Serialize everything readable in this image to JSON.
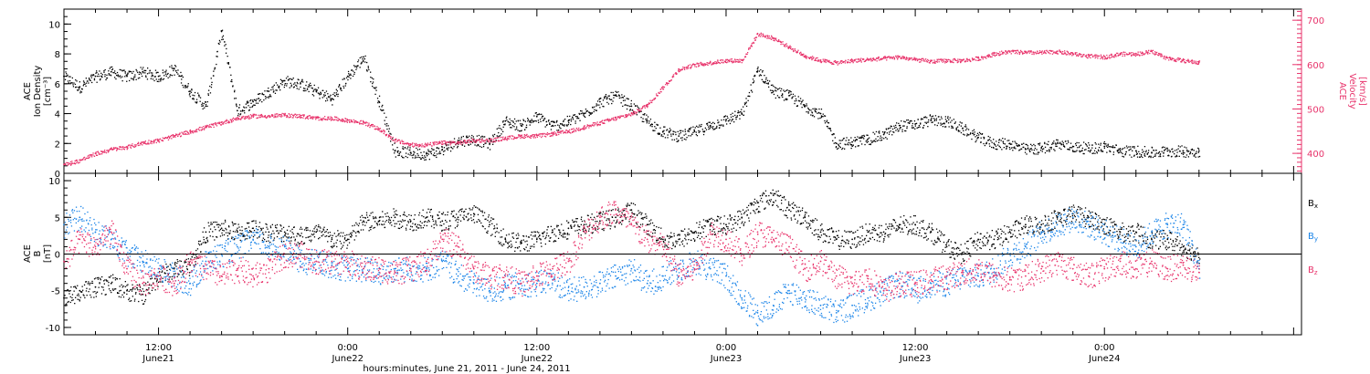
{
  "colors": {
    "black": "#000000",
    "pink": "#e8336b",
    "blue": "#1a84e8"
  },
  "xaxis": {
    "xlabel": "hours:minutes, June 21, 2011 - June 24, 2011",
    "ticks": [
      {
        "time_label": "12:00",
        "date_label": "June21",
        "hour": 12
      },
      {
        "time_label": "0:00",
        "date_label": "June22",
        "hour": 24
      },
      {
        "time_label": "12:00",
        "date_label": "June22",
        "hour": 36
      },
      {
        "time_label": "0:00",
        "date_label": "June23",
        "hour": 48
      },
      {
        "time_label": "12:00",
        "date_label": "June23",
        "hour": 60
      },
      {
        "time_label": "0:00",
        "date_label": "June24",
        "hour": 72
      }
    ]
  },
  "chart_data": [
    {
      "type": "scatter",
      "panel": "top",
      "x_units": "hours from 2011-06-21 00:00",
      "xlim": [
        6,
        84.5
      ],
      "left_axis": {
        "label_lines": [
          "ACE",
          "Ion Density",
          "[cm⁻³]"
        ],
        "ylim": [
          0,
          11
        ],
        "ticks": [
          "0",
          "2",
          "4",
          "6",
          "8",
          "10"
        ],
        "tick_values": [
          0,
          2,
          4,
          6,
          8,
          10
        ]
      },
      "right_axis": {
        "label_lines": [
          "ACE",
          "Velocity",
          "[km/s]"
        ],
        "ylim": [
          355,
          725
        ],
        "ticks": [
          "400",
          "500",
          "600",
          "700"
        ],
        "tick_values": [
          400,
          500,
          600,
          700
        ]
      },
      "series": [
        {
          "name": "Ion Density",
          "color": "#000000",
          "axis": "left",
          "x": [
            6,
            7,
            8,
            9,
            10,
            11,
            12,
            13,
            14,
            15,
            16,
            17,
            18,
            19,
            20,
            21,
            22,
            23,
            24,
            25,
            26,
            27,
            28,
            29,
            30,
            31,
            32,
            33,
            34,
            35,
            36,
            37,
            38,
            39,
            40,
            41,
            42,
            43,
            44,
            45,
            46,
            47,
            48,
            49,
            50,
            51,
            52,
            53,
            54,
            55,
            56,
            57,
            58,
            59,
            60,
            61,
            62,
            63,
            64,
            65,
            66,
            67,
            68,
            69,
            70,
            71,
            72,
            73,
            74,
            75,
            76,
            77,
            78
          ],
          "y": [
            6.5,
            5.8,
            6.5,
            6.8,
            6.5,
            6.8,
            6.5,
            7.0,
            5.5,
            4.5,
            9.5,
            4.2,
            4.8,
            5.5,
            6.2,
            6.0,
            5.5,
            5.0,
            6.5,
            7.8,
            4.8,
            1.5,
            1.4,
            1.3,
            1.6,
            2.2,
            2.3,
            2.0,
            3.5,
            3.2,
            3.8,
            3.2,
            3.5,
            4.0,
            4.8,
            5.2,
            4.5,
            3.5,
            2.8,
            2.5,
            2.8,
            3.2,
            3.6,
            4.0,
            7.0,
            5.5,
            5.2,
            4.5,
            4.0,
            2.0,
            2.1,
            2.3,
            2.6,
            3.2,
            3.3,
            3.6,
            3.5,
            3.0,
            2.4,
            2.0,
            2.0,
            1.6,
            1.7,
            2.0,
            1.8,
            1.7,
            1.8,
            1.5,
            1.5,
            1.4,
            1.5,
            1.5,
            1.5
          ]
        },
        {
          "name": "Velocity",
          "color": "#e8336b",
          "axis": "right",
          "x": [
            6,
            7,
            8,
            9,
            10,
            11,
            12,
            13,
            14,
            15,
            16,
            17,
            18,
            19,
            20,
            21,
            22,
            23,
            24,
            25,
            26,
            27,
            28,
            29,
            30,
            31,
            32,
            33,
            34,
            35,
            36,
            37,
            38,
            39,
            40,
            41,
            42,
            43,
            44,
            45,
            46,
            47,
            48,
            49,
            50,
            51,
            52,
            53,
            54,
            55,
            56,
            57,
            58,
            59,
            60,
            61,
            62,
            63,
            64,
            65,
            66,
            67,
            68,
            69,
            70,
            71,
            72,
            73,
            74,
            75,
            76,
            77,
            78
          ],
          "y": [
            375,
            385,
            400,
            410,
            415,
            425,
            430,
            440,
            450,
            460,
            470,
            480,
            485,
            485,
            487,
            485,
            480,
            480,
            475,
            470,
            455,
            430,
            420,
            420,
            425,
            425,
            430,
            430,
            435,
            440,
            440,
            445,
            450,
            460,
            470,
            480,
            490,
            510,
            550,
            590,
            600,
            605,
            610,
            610,
            670,
            660,
            640,
            620,
            610,
            605,
            610,
            612,
            615,
            618,
            612,
            608,
            610,
            610,
            615,
            625,
            630,
            628,
            628,
            630,
            625,
            620,
            618,
            625,
            625,
            630,
            615,
            610,
            605
          ]
        }
      ]
    },
    {
      "type": "scatter",
      "panel": "bottom",
      "x_units": "hours from 2011-06-21 00:00",
      "xlim": [
        6,
        84.5
      ],
      "left_axis": {
        "label_lines": [
          "ACE",
          "B",
          "[nT]"
        ],
        "ylim": [
          -11,
          11
        ],
        "ticks": [
          "-10",
          "-5",
          "0",
          "5",
          "10"
        ],
        "tick_values": [
          -10,
          -5,
          0,
          5,
          10
        ]
      },
      "zero_line": true,
      "legend": {
        "placement": "right",
        "labels": [
          "B",
          "B",
          "B"
        ],
        "subscripts": [
          "x",
          "y",
          "z"
        ]
      },
      "series": [
        {
          "name": "Bx",
          "color": "#000000",
          "x": [
            6,
            7,
            8,
            9,
            10,
            11,
            12,
            13,
            14,
            15,
            16,
            17,
            18,
            19,
            20,
            21,
            22,
            23,
            24,
            25,
            26,
            27,
            28,
            29,
            30,
            31,
            32,
            33,
            34,
            35,
            36,
            37,
            38,
            39,
            40,
            41,
            42,
            43,
            44,
            45,
            46,
            47,
            48,
            49,
            50,
            51,
            52,
            53,
            54,
            55,
            56,
            57,
            58,
            59,
            60,
            61,
            62,
            63,
            64,
            65,
            66,
            67,
            68,
            69,
            70,
            71,
            72,
            73,
            74,
            75,
            76,
            77,
            78
          ],
          "y": [
            -6,
            -5,
            -4.5,
            -4,
            -5,
            -5.5,
            -3,
            -2,
            -1.5,
            3,
            3.5,
            3,
            3.5,
            3,
            3,
            2.5,
            3,
            2,
            2,
            4.5,
            4.5,
            5,
            4.5,
            5,
            4.5,
            5,
            5.5,
            4,
            2,
            1.5,
            2,
            3,
            3.5,
            4,
            4.5,
            5,
            6,
            4,
            2,
            2,
            3,
            4,
            4,
            5,
            7,
            8,
            6,
            5,
            3,
            2,
            2,
            3,
            3,
            4,
            4,
            3,
            1,
            0,
            2,
            2,
            3,
            4,
            4,
            5,
            5.5,
            5,
            4,
            3,
            3,
            2,
            2,
            1,
            0
          ]
        },
        {
          "name": "By",
          "color": "#1a84e8",
          "x": [
            6,
            7,
            8,
            9,
            10,
            11,
            12,
            13,
            14,
            15,
            16,
            17,
            18,
            19,
            20,
            21,
            22,
            23,
            24,
            25,
            26,
            27,
            28,
            29,
            30,
            31,
            32,
            33,
            34,
            35,
            36,
            37,
            38,
            39,
            40,
            41,
            42,
            43,
            44,
            45,
            46,
            47,
            48,
            49,
            50,
            51,
            52,
            53,
            54,
            55,
            56,
            57,
            58,
            59,
            60,
            61,
            62,
            63,
            64,
            65,
            66,
            67,
            68,
            69,
            70,
            71,
            72,
            73,
            74,
            75,
            76,
            77,
            78
          ],
          "y": [
            4,
            5,
            3,
            2,
            0,
            -1,
            -2,
            -3,
            -4,
            -1,
            0,
            1,
            2,
            1,
            1,
            -1,
            -1,
            -1.5,
            -2,
            -2,
            -2.5,
            -2,
            -2,
            -2,
            -1,
            -3,
            -4,
            -5,
            -4.5,
            -4,
            -4,
            -3.5,
            -5,
            -4.5,
            -4,
            -3,
            -2,
            -4,
            -3,
            -2,
            -1,
            -2,
            -3,
            -6,
            -8,
            -7,
            -5,
            -6,
            -7,
            -8,
            -7,
            -6,
            -5,
            -4,
            -5,
            -4,
            -4,
            -3,
            -3,
            -2,
            0,
            1,
            3,
            4,
            5,
            4,
            3,
            2,
            1,
            3,
            4,
            4,
            -2
          ]
        },
        {
          "name": "Bz",
          "color": "#e8336b",
          "x": [
            6,
            7,
            8,
            9,
            10,
            11,
            12,
            13,
            14,
            15,
            16,
            17,
            18,
            19,
            20,
            21,
            22,
            23,
            24,
            25,
            26,
            27,
            28,
            29,
            30,
            31,
            32,
            33,
            34,
            35,
            36,
            37,
            38,
            39,
            40,
            41,
            42,
            43,
            44,
            45,
            46,
            47,
            48,
            49,
            50,
            51,
            52,
            53,
            54,
            55,
            56,
            57,
            58,
            59,
            60,
            61,
            62,
            63,
            64,
            65,
            66,
            67,
            68,
            69,
            70,
            71,
            72,
            73,
            74,
            75,
            76,
            77,
            78
          ],
          "y": [
            -1,
            2,
            1,
            3,
            -2,
            -4,
            -3,
            -4,
            -1,
            -2,
            -3,
            -2,
            -3,
            -2,
            0,
            0,
            -1,
            -1,
            -1,
            -2,
            -2,
            -2.5,
            -2,
            -1,
            2,
            1,
            -2,
            -3,
            -3,
            -4,
            -3,
            -2,
            -1,
            3,
            5,
            6,
            4,
            2,
            1,
            -3,
            -2,
            3,
            2,
            0,
            3,
            2,
            1,
            -2,
            -1,
            -3,
            -4,
            -3,
            -5,
            -4,
            -4,
            -3.5,
            -3,
            -2.5,
            -2,
            -3,
            -3.5,
            -3,
            -2,
            -1,
            -2,
            -3,
            -2,
            -1,
            -2,
            -1,
            -2,
            -1.5,
            -2.5
          ]
        }
      ]
    }
  ]
}
